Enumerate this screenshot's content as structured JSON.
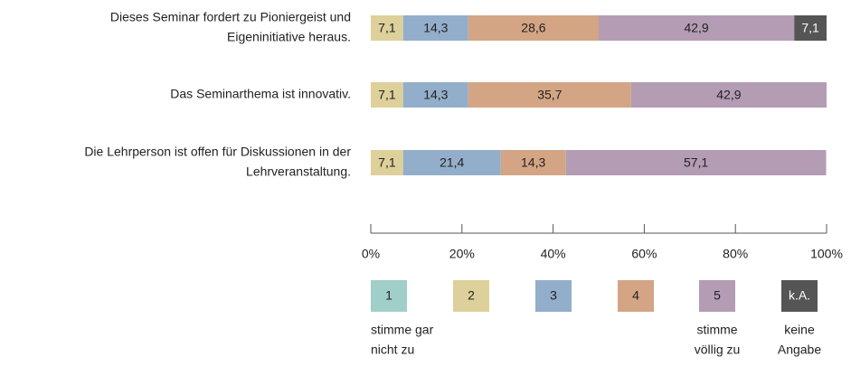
{
  "chart_data": {
    "type": "stacked-bar-horizontal",
    "categories": [
      [
        "Dieses Seminar fordert zu Pioniergeist und",
        "Eigeninitiative heraus."
      ],
      [
        "Das Seminarthema ist innovativ."
      ],
      [
        "Die Lehrperson ist offen für Diskussionen in der",
        "Lehrveranstaltung."
      ]
    ],
    "series": [
      {
        "name": "1",
        "color": "#9fcfc8",
        "description": [
          "stimme gar",
          "nicht zu"
        ],
        "values": [
          null,
          null,
          null
        ]
      },
      {
        "name": "2",
        "color": "#ddd09a",
        "values": [
          7.1,
          7.1,
          7.1
        ],
        "value_labels": [
          "7,1",
          "7,1",
          "7,1"
        ]
      },
      {
        "name": "3",
        "color": "#93aecb",
        "values": [
          14.3,
          14.3,
          21.4
        ],
        "value_labels": [
          "14,3",
          "14,3",
          "21,4"
        ]
      },
      {
        "name": "4",
        "color": "#d4a584",
        "values": [
          28.6,
          35.7,
          14.3
        ],
        "value_labels": [
          "28,6",
          "35,7",
          "14,3"
        ]
      },
      {
        "name": "5",
        "color": "#b39cb4",
        "description": [
          "stimme",
          "völlig zu"
        ],
        "values": [
          42.9,
          42.9,
          57.1
        ],
        "value_labels": [
          "42,9",
          "42,9",
          "57,1"
        ]
      },
      {
        "name": "k.A.",
        "color": "#555555",
        "description": [
          "keine",
          "Angabe"
        ],
        "values": [
          7.1,
          null,
          null
        ],
        "value_labels": [
          "7,1",
          null,
          null
        ]
      }
    ],
    "xlim": [
      0,
      100
    ],
    "xticks": [
      {
        "value": 0,
        "label": "0%"
      },
      {
        "value": 20,
        "label": "20%"
      },
      {
        "value": 40,
        "label": "40%"
      },
      {
        "value": 60,
        "label": "60%"
      },
      {
        "value": 80,
        "label": "80%"
      },
      {
        "value": 100,
        "label": "100%"
      }
    ]
  }
}
